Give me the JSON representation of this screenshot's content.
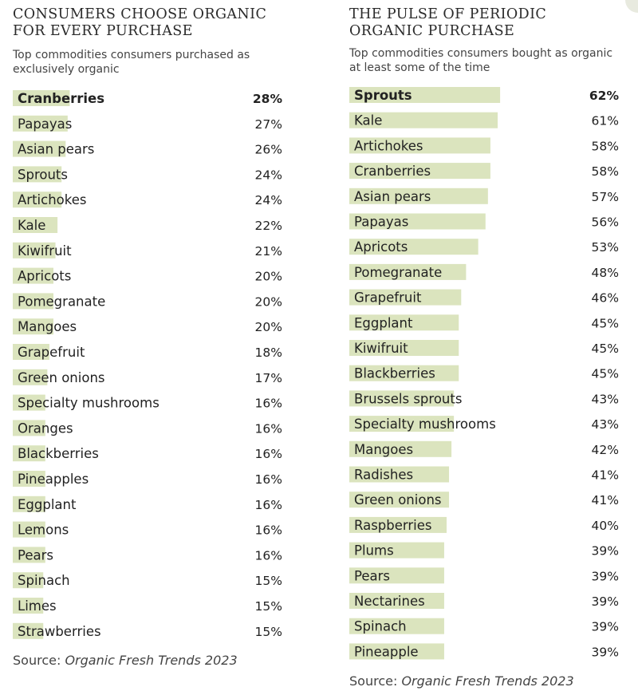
{
  "chart_data": [
    {
      "type": "bar",
      "title": "CONSUMERS CHOOSE ORGANIC FOR EVERY PURCHASE",
      "subtitle": "Top commodities consumers purchased as exclusively organic",
      "categories": [
        "Cranberries",
        "Papayas",
        "Asian pears",
        "Sprouts",
        "Artichokes",
        "Kale",
        "Kiwifruit",
        "Apricots",
        "Pomegranate",
        "Mangoes",
        "Grapefruit",
        "Green onions",
        "Specialty mushrooms",
        "Oranges",
        "Blackberries",
        "Pineapples",
        "Eggplant",
        "Lemons",
        "Pears",
        "Spinach",
        "Limes",
        "Strawberries"
      ],
      "values": [
        28,
        27,
        26,
        24,
        24,
        22,
        21,
        20,
        20,
        20,
        18,
        17,
        16,
        16,
        16,
        16,
        16,
        16,
        16,
        15,
        15,
        15
      ],
      "value_labels": [
        "28%",
        "27%",
        "26%",
        "24%",
        "24%",
        "22%",
        "21%",
        "20%",
        "20%",
        "20%",
        "18%",
        "17%",
        "16%",
        "16%",
        "16%",
        "16%",
        "16%",
        "16%",
        "16%",
        "15%",
        "15%",
        "15%"
      ],
      "highlight_first": true,
      "source_prefix": "Source:",
      "source_publication": "Organic Fresh Trends 2023"
    },
    {
      "type": "bar",
      "title": "THE PULSE OF PERIODIC ORGANIC PURCHASE",
      "subtitle": "Top commodities consumers bought as organic at least some of the time",
      "categories": [
        "Sprouts",
        "Kale",
        "Artichokes",
        "Cranberries",
        "Asian pears",
        "Papayas",
        "Apricots",
        "Pomegranate",
        "Grapefruit",
        "Eggplant",
        "Kiwifruit",
        "Blackberries",
        "Brussels sprouts",
        "Specialty mushrooms",
        "Mangoes",
        "Radishes",
        "Green onions",
        "Raspberries",
        "Plums",
        "Pears",
        "Nectarines",
        "Spinach",
        "Pineapple"
      ],
      "values": [
        62,
        61,
        58,
        58,
        57,
        56,
        53,
        48,
        46,
        45,
        45,
        45,
        43,
        43,
        42,
        41,
        41,
        40,
        39,
        39,
        39,
        39,
        39
      ],
      "value_labels": [
        "62%",
        "61%",
        "58%",
        "58%",
        "57%",
        "56%",
        "53%",
        "48%",
        "46%",
        "45%",
        "45%",
        "45%",
        "43%",
        "43%",
        "42%",
        "41%",
        "41%",
        "40%",
        "39%",
        "39%",
        "39%",
        "39%",
        "39%"
      ],
      "highlight_first": true,
      "source_prefix": "Source:",
      "source_publication": "Organic Fresh Trends 2023"
    }
  ],
  "colors": {
    "bar": "#dbe4be",
    "text": "#222222",
    "muted": "#444444"
  }
}
